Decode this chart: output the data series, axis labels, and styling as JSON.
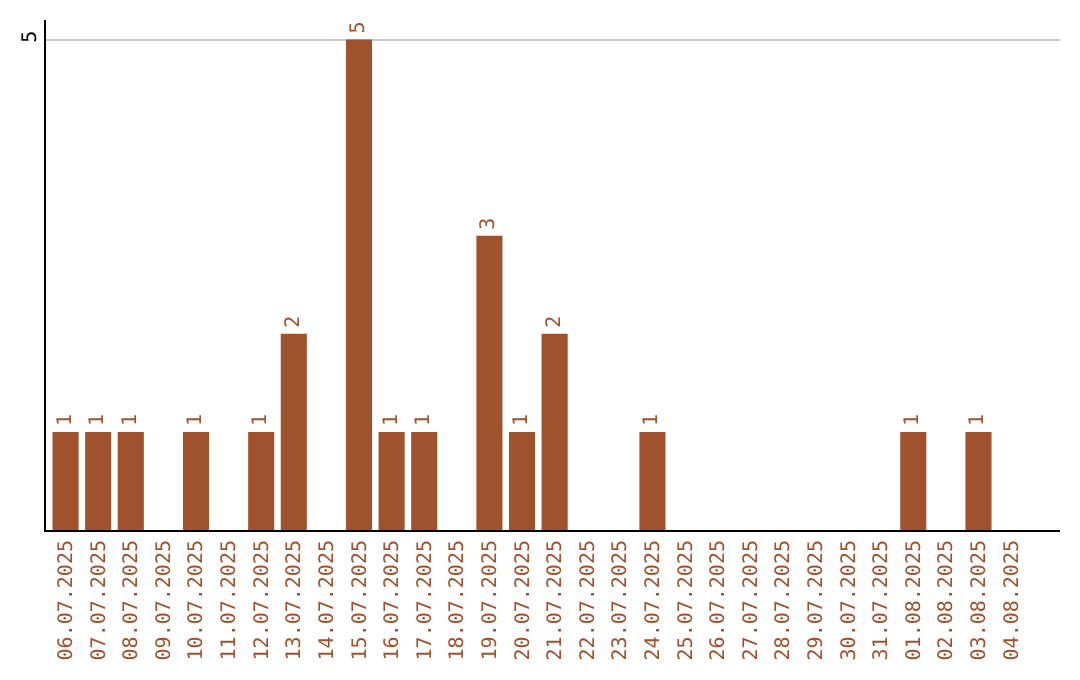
{
  "chart_data": {
    "type": "bar",
    "categories": [
      "06.07.2025",
      "07.07.2025",
      "08.07.2025",
      "09.07.2025",
      "10.07.2025",
      "11.07.2025",
      "12.07.2025",
      "13.07.2025",
      "14.07.2025",
      "15.07.2025",
      "16.07.2025",
      "17.07.2025",
      "18.07.2025",
      "19.07.2025",
      "20.07.2025",
      "21.07.2025",
      "22.07.2025",
      "23.07.2025",
      "24.07.2025",
      "25.07.2025",
      "26.07.2025",
      "27.07.2025",
      "28.07.2025",
      "29.07.2025",
      "30.07.2025",
      "31.07.2025",
      "01.08.2025",
      "02.08.2025",
      "03.08.2025",
      "04.08.2025"
    ],
    "values": [
      1,
      1,
      1,
      0,
      1,
      0,
      1,
      2,
      0,
      5,
      1,
      1,
      0,
      3,
      1,
      2,
      0,
      0,
      1,
      0,
      0,
      0,
      0,
      0,
      0,
      0,
      1,
      0,
      1,
      0
    ],
    "value_labels": [
      "1",
      "1",
      "1",
      null,
      "1",
      null,
      "1",
      "2",
      null,
      "5",
      "1",
      "1",
      null,
      "3",
      "1",
      "2",
      null,
      null,
      "1",
      null,
      null,
      null,
      null,
      null,
      null,
      null,
      "1",
      null,
      "1",
      null
    ],
    "color": "#a0522d",
    "ylim": [
      0,
      5.2
    ],
    "yticks": [
      5
    ],
    "grid": "y"
  }
}
